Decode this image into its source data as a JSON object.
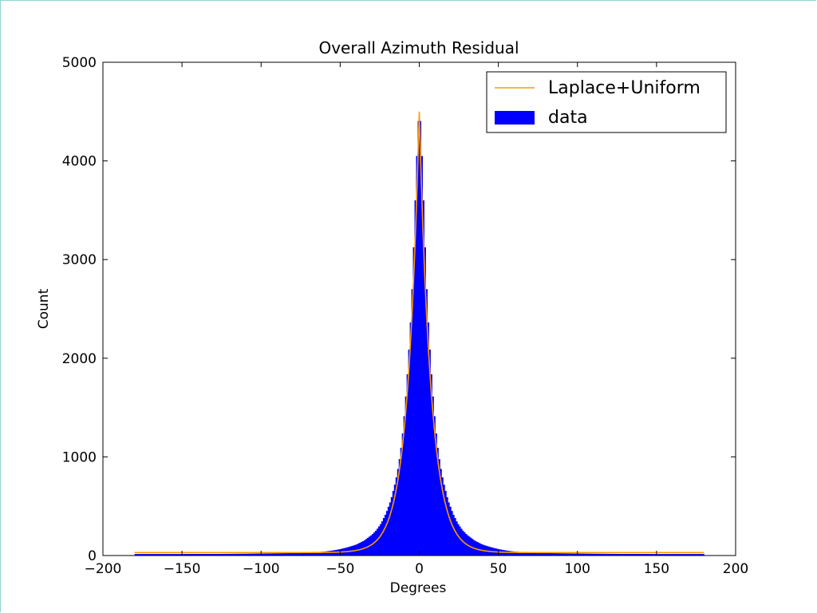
{
  "chart_data": {
    "type": "bar",
    "title": "Overall Azimuth Residual",
    "xlabel": "Degrees",
    "ylabel": "Count",
    "xlim": [
      -200,
      200
    ],
    "ylim": [
      0,
      5000
    ],
    "xticks": [
      -200,
      -150,
      -100,
      -50,
      0,
      50,
      100,
      150,
      200
    ],
    "xtick_labels": [
      "−200",
      "−150",
      "−100",
      "−50",
      "0",
      "50",
      "100",
      "150",
      "200"
    ],
    "yticks": [
      0,
      1000,
      2000,
      3000,
      4000,
      5000
    ],
    "ytick_labels": [
      "0",
      "1000",
      "2000",
      "3000",
      "4000",
      "5000"
    ],
    "legend_position": "top-right",
    "grid": false,
    "series": [
      {
        "name": "data",
        "kind": "histogram",
        "color": "#0000ff",
        "bin_width": 1,
        "x_range": [
          -180,
          180
        ],
        "x": [
          -180,
          -170,
          -160,
          -150,
          -140,
          -130,
          -120,
          -110,
          -100,
          -90,
          -80,
          -70,
          -60,
          -55,
          -50,
          -45,
          -40,
          -35,
          -30,
          -27,
          -24,
          -21,
          -18,
          -15,
          -13,
          -11,
          -9,
          -7,
          -5,
          -4,
          -3,
          -2,
          -1,
          0,
          1,
          2,
          3,
          4,
          5,
          7,
          9,
          11,
          13,
          15,
          18,
          21,
          24,
          27,
          30,
          35,
          40,
          45,
          50,
          55,
          60,
          70,
          80,
          90,
          100,
          110,
          120,
          130,
          140,
          150,
          160,
          170,
          180
        ],
        "values": [
          15,
          15,
          15,
          15,
          16,
          16,
          17,
          18,
          20,
          22,
          25,
          30,
          40,
          50,
          65,
          85,
          110,
          150,
          210,
          260,
          330,
          430,
          560,
          750,
          920,
          1150,
          1500,
          1950,
          2500,
          2900,
          3350,
          3850,
          4250,
          4560,
          4250,
          3850,
          3350,
          2900,
          2500,
          1950,
          1500,
          1150,
          920,
          750,
          560,
          430,
          330,
          260,
          210,
          150,
          110,
          85,
          65,
          50,
          40,
          30,
          25,
          22,
          20,
          18,
          17,
          16,
          16,
          15,
          15,
          15,
          15
        ]
      },
      {
        "name": "Laplace+Uniform",
        "kind": "line",
        "color": "#ff9900",
        "x_range": [
          -180,
          180
        ],
        "peak": 4500,
        "scale": 7.5,
        "uniform_level": 30
      }
    ]
  }
}
